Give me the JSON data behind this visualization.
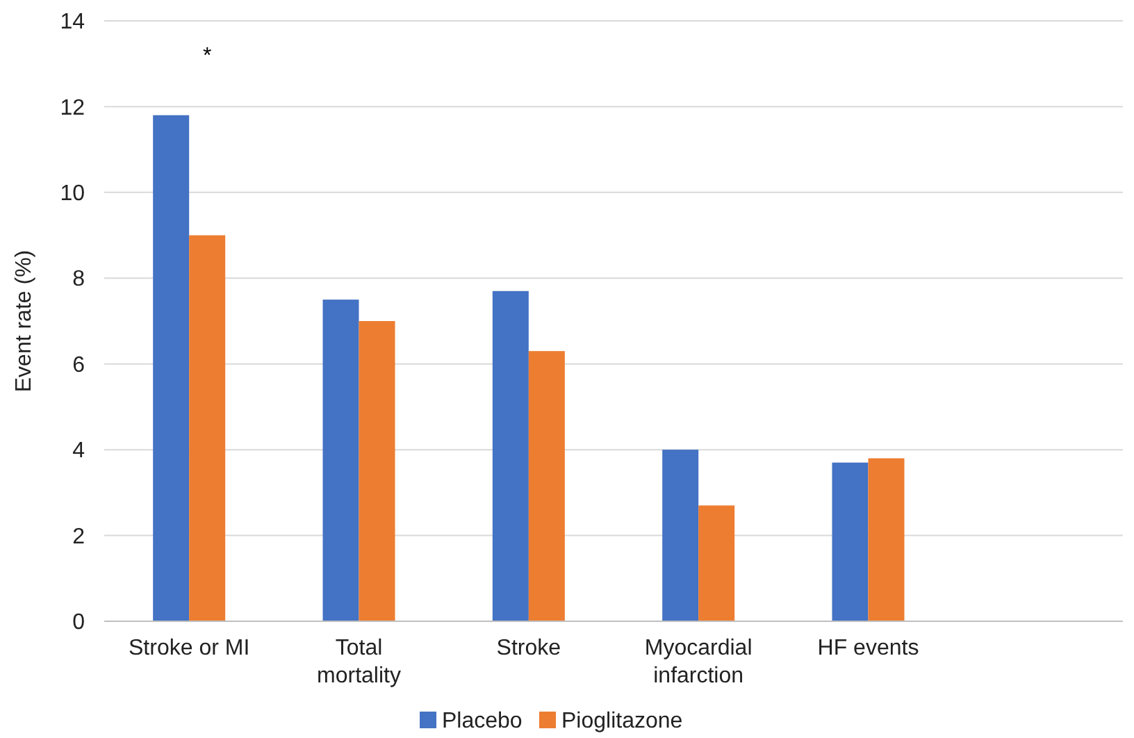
{
  "chart_data": {
    "type": "bar",
    "ylabel": "Event rate (%)",
    "categories": [
      "Stroke or MI",
      "Total mortality",
      "Stroke",
      "Myocardial infarction",
      "HF events",
      null
    ],
    "series": [
      {
        "name": "Placebo",
        "color": "#4472c4",
        "values": [
          11.8,
          7.5,
          7.7,
          4.0,
          3.7,
          null
        ]
      },
      {
        "name": "Pioglitazone",
        "color": "#ed7d31",
        "values": [
          9.0,
          7.0,
          6.3,
          2.7,
          3.8,
          null
        ]
      }
    ],
    "ylim": [
      0,
      14
    ],
    "yticks": [
      0,
      2,
      4,
      6,
      8,
      10,
      12,
      14
    ],
    "grid": "y",
    "legend": "bottom",
    "annotations": [
      "*"
    ]
  }
}
